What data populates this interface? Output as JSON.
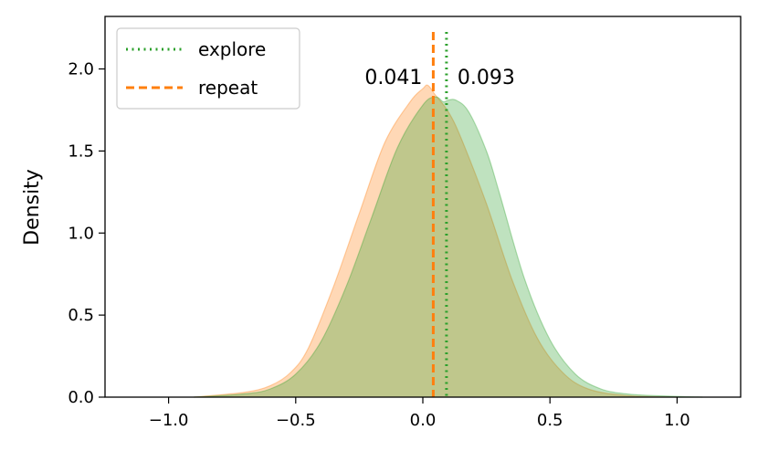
{
  "chart_data": {
    "type": "area",
    "title": "",
    "xlabel": "",
    "ylabel": "Density",
    "xlim": [
      -1.25,
      1.25
    ],
    "ylim": [
      0.0,
      2.32
    ],
    "xticks": [
      -1.0,
      -0.5,
      0.0,
      0.5,
      1.0
    ],
    "xtick_labels": [
      "−1.0",
      "−0.5",
      "0.0",
      "0.5",
      "1.0"
    ],
    "yticks": [
      0.0,
      0.5,
      1.0,
      1.5,
      2.0
    ],
    "ytick_labels": [
      "0.0",
      "0.5",
      "1.0",
      "1.5",
      "2.0"
    ],
    "grid": false,
    "legend_position": "top-left",
    "series": [
      {
        "name": "explore",
        "color": "#2ca02c",
        "line_style": "dotted",
        "mean": 0.093,
        "mean_label": "0.093",
        "x": [
          -0.9,
          -0.7,
          -0.6,
          -0.5,
          -0.4,
          -0.3,
          -0.2,
          -0.1,
          0.0,
          0.05,
          0.08,
          0.1,
          0.13,
          0.18,
          0.25,
          0.3,
          0.4,
          0.5,
          0.6,
          0.7,
          0.8,
          0.9,
          1.1
        ],
        "y": [
          0.0,
          0.02,
          0.05,
          0.14,
          0.34,
          0.68,
          1.1,
          1.52,
          1.78,
          1.83,
          1.8,
          1.81,
          1.81,
          1.74,
          1.5,
          1.25,
          0.72,
          0.35,
          0.14,
          0.05,
          0.02,
          0.01,
          0.0
        ]
      },
      {
        "name": "repeat",
        "color": "#ff7f0e",
        "line_style": "dashed",
        "mean": 0.041,
        "mean_label": "0.041",
        "x": [
          -0.9,
          -0.7,
          -0.6,
          -0.52,
          -0.45,
          -0.35,
          -0.25,
          -0.15,
          -0.05,
          0.0,
          0.02,
          0.05,
          0.1,
          0.15,
          0.25,
          0.35,
          0.45,
          0.55,
          0.65,
          0.8,
          1.0
        ],
        "y": [
          0.0,
          0.03,
          0.07,
          0.15,
          0.3,
          0.68,
          1.12,
          1.55,
          1.8,
          1.88,
          1.9,
          1.84,
          1.74,
          1.58,
          1.18,
          0.72,
          0.36,
          0.15,
          0.05,
          0.01,
          0.0
        ]
      }
    ]
  }
}
